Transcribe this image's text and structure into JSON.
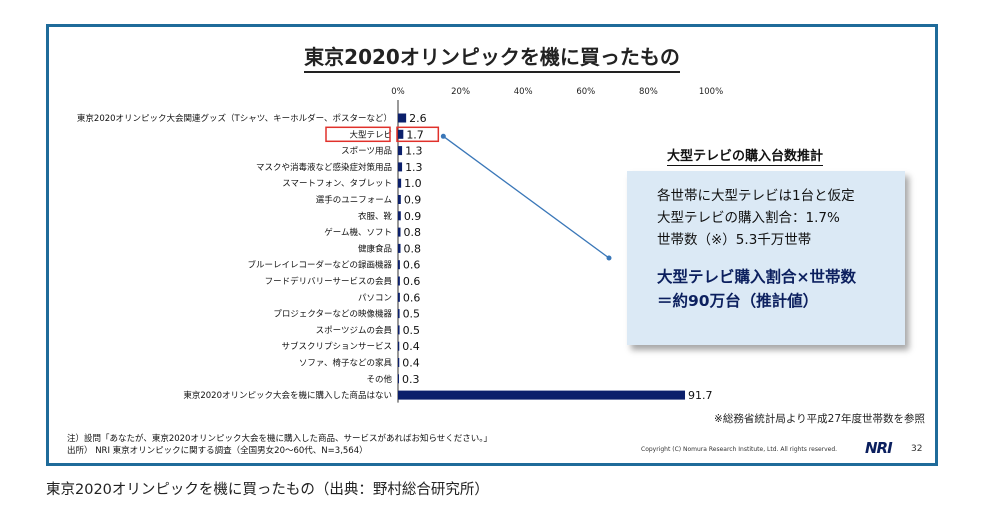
{
  "slide": {
    "title": "東京2020オリンピックを機に買ったもの",
    "estimate_title": "大型テレビの購入台数推計",
    "estimate_lines": [
      "各世帯に大型テレビは1台と仮定",
      "大型テレビの購入割合：1.7%",
      "世帯数（※）5.3千万世帯"
    ],
    "estimate_bold_lines": [
      "大型テレビ購入割合×世帯数",
      "＝約90万台（推計値）"
    ],
    "estimate_note": "※総務省統計局より平成27年度世帯数を参照",
    "footnote_lines": [
      "注）設問「あなたが、東京2020オリンピック大会を機に購入した商品、サービスがあればお知らせください。」",
      "出所） NRI 東京オリンピックに関する調査（全国男女20～60代、N=3,564）"
    ],
    "copyright": "Copyright (C) Nomura Research Institute, Ltd. All rights reserved.",
    "logo": "NRI",
    "page_number": "32"
  },
  "caption": "東京2020オリンピックを機に買ったもの（出典：野村総合研究所）",
  "colors": {
    "bar": "#0b1f6b",
    "frame": "#1f6b9a",
    "highlight": "#e0312b",
    "connector": "#3a77b8",
    "box": "#dbe9f5"
  },
  "chart_data": {
    "type": "bar",
    "orientation": "horizontal",
    "xlim": [
      0,
      100
    ],
    "x_ticks": [
      "0%",
      "20%",
      "40%",
      "60%",
      "80%",
      "100%"
    ],
    "categories": [
      "東京2020オリンピック大会関連グッズ（Tシャツ、キーホルダー、ポスターなど）",
      "大型テレビ",
      "スポーツ用品",
      "マスクや消毒液など感染症対策用品",
      "スマートフォン、タブレット",
      "選手のユニフォーム",
      "衣服、靴",
      "ゲーム機、ソフト",
      "健康食品",
      "ブルーレイレコーダーなどの録画機器",
      "フードデリバリーサービスの会員",
      "パソコン",
      "プロジェクターなどの映像機器",
      "スポーツジムの会員",
      "サブスクリプションサービス",
      "ソファ、椅子などの家具",
      "その他",
      "東京2020オリンピック大会を機に購入した商品はない"
    ],
    "values": [
      2.6,
      1.7,
      1.3,
      1.3,
      1.0,
      0.9,
      0.9,
      0.8,
      0.8,
      0.6,
      0.6,
      0.6,
      0.5,
      0.5,
      0.4,
      0.4,
      0.3,
      91.7
    ],
    "value_labels": [
      "2.6",
      "1.7",
      "1.3",
      "1.3",
      "1.0",
      "0.9",
      "0.9",
      "0.8",
      "0.8",
      "0.6",
      "0.6",
      "0.6",
      "0.5",
      "0.5",
      "0.4",
      "0.4",
      "0.3",
      "91.7"
    ],
    "highlight_category": "大型テレビ"
  }
}
